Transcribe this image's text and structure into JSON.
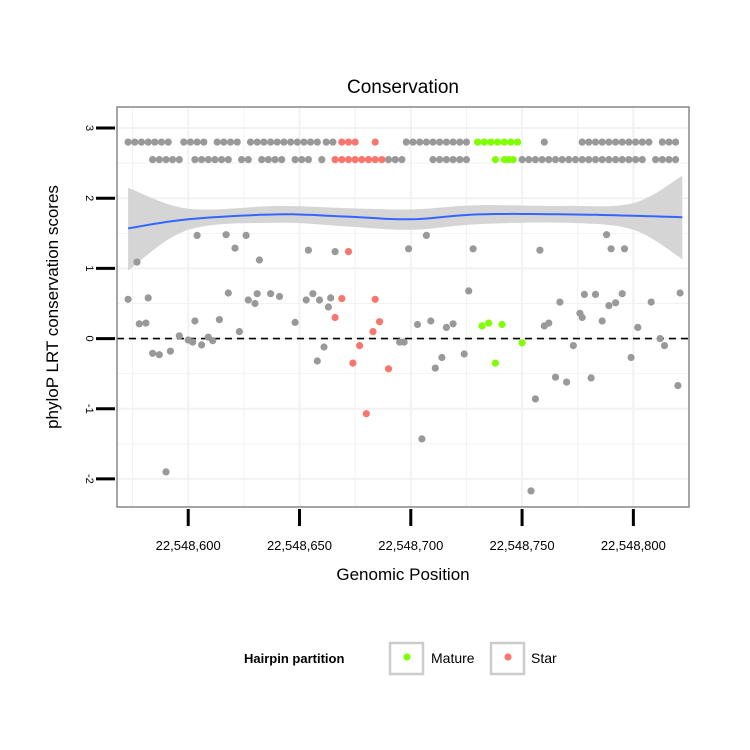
{
  "chart_data": {
    "type": "scatter",
    "title": "Conservation",
    "xlabel": "Genomic Position",
    "ylabel": "phyloP LRT conservation scores",
    "xlim": [
      22548568,
      22548825
    ],
    "ylim": [
      -2.4,
      3.3
    ],
    "xticks": [
      22548600,
      22548650,
      22548700,
      22548750,
      22548800
    ],
    "xtick_labels": [
      "22,548,600",
      "22,548,650",
      "22,548,700",
      "22,548,750",
      "22,548,800"
    ],
    "yticks": [
      -2,
      -1,
      0,
      1,
      2,
      3
    ],
    "ytick_labels": [
      "-2",
      "-1",
      "0",
      "1",
      "2",
      "3"
    ],
    "grid": true,
    "reference_line": {
      "y": 0,
      "style": "dashed",
      "color": "#000000"
    },
    "colors": {
      "default": "#999999",
      "Mature": "#7FFF00",
      "Star": "#F8766D",
      "smooth_line": "#3366FF",
      "ribbon": "#D3D3D3",
      "panel_border": "#888888"
    },
    "legend": {
      "title": "Hairpin partition",
      "position": "bottom",
      "entries": [
        {
          "label": "Mature",
          "color": "#7FFF00"
        },
        {
          "label": "Star",
          "color": "#F8766D"
        }
      ]
    },
    "smooth": {
      "x": [
        22548573,
        22548600,
        22548640,
        22548670,
        22548700,
        22548730,
        22548770,
        22548800,
        22548822
      ],
      "y": [
        1.57,
        1.7,
        1.77,
        1.74,
        1.7,
        1.77,
        1.77,
        1.75,
        1.73
      ],
      "lower": [
        0.97,
        1.55,
        1.65,
        1.6,
        1.55,
        1.63,
        1.65,
        1.55,
        1.13
      ],
      "upper": [
        2.15,
        1.85,
        1.89,
        1.86,
        1.84,
        1.9,
        1.89,
        1.93,
        2.32
      ]
    },
    "series": [
      {
        "name": "",
        "partition": "none",
        "color": "#999999",
        "points": [
          [
            22548573,
            2.8
          ],
          [
            22548576,
            2.8
          ],
          [
            22548579,
            2.8
          ],
          [
            22548582,
            2.8
          ],
          [
            22548585,
            2.8
          ],
          [
            22548588,
            2.8
          ],
          [
            22548591,
            2.8
          ],
          [
            22548598,
            2.8
          ],
          [
            22548601,
            2.8
          ],
          [
            22548604,
            2.8
          ],
          [
            22548607,
            2.8
          ],
          [
            22548613,
            2.8
          ],
          [
            22548616,
            2.8
          ],
          [
            22548619,
            2.8
          ],
          [
            22548622,
            2.8
          ],
          [
            22548628,
            2.8
          ],
          [
            22548631,
            2.8
          ],
          [
            22548634,
            2.8
          ],
          [
            22548637,
            2.8
          ],
          [
            22548640,
            2.8
          ],
          [
            22548643,
            2.8
          ],
          [
            22548646,
            2.8
          ],
          [
            22548649,
            2.8
          ],
          [
            22548652,
            2.8
          ],
          [
            22548655,
            2.8
          ],
          [
            22548658,
            2.8
          ],
          [
            22548662,
            2.8
          ],
          [
            22548665,
            2.8
          ],
          [
            22548698,
            2.8
          ],
          [
            22548701,
            2.8
          ],
          [
            22548704,
            2.8
          ],
          [
            22548707,
            2.8
          ],
          [
            22548710,
            2.8
          ],
          [
            22548713,
            2.8
          ],
          [
            22548716,
            2.8
          ],
          [
            22548719,
            2.8
          ],
          [
            22548722,
            2.8
          ],
          [
            22548725,
            2.8
          ],
          [
            22548760,
            2.8
          ],
          [
            22548777,
            2.8
          ],
          [
            22548780,
            2.8
          ],
          [
            22548783,
            2.8
          ],
          [
            22548786,
            2.8
          ],
          [
            22548789,
            2.8
          ],
          [
            22548792,
            2.8
          ],
          [
            22548795,
            2.8
          ],
          [
            22548798,
            2.8
          ],
          [
            22548801,
            2.8
          ],
          [
            22548804,
            2.8
          ],
          [
            22548807,
            2.8
          ],
          [
            22548813,
            2.8
          ],
          [
            22548816,
            2.8
          ],
          [
            22548819,
            2.8
          ],
          [
            22548584,
            2.55
          ],
          [
            22548587,
            2.55
          ],
          [
            22548590,
            2.55
          ],
          [
            22548593,
            2.55
          ],
          [
            22548596,
            2.55
          ],
          [
            22548603,
            2.55
          ],
          [
            22548606,
            2.55
          ],
          [
            22548609,
            2.55
          ],
          [
            22548612,
            2.55
          ],
          [
            22548615,
            2.55
          ],
          [
            22548618,
            2.55
          ],
          [
            22548624,
            2.55
          ],
          [
            22548627,
            2.55
          ],
          [
            22548633,
            2.55
          ],
          [
            22548636,
            2.55
          ],
          [
            22548639,
            2.55
          ],
          [
            22548642,
            2.55
          ],
          [
            22548648,
            2.55
          ],
          [
            22548651,
            2.55
          ],
          [
            22548654,
            2.55
          ],
          [
            22548660,
            2.55
          ],
          [
            22548690,
            2.55
          ],
          [
            22548693,
            2.55
          ],
          [
            22548696,
            2.55
          ],
          [
            22548710,
            2.55
          ],
          [
            22548713,
            2.55
          ],
          [
            22548716,
            2.55
          ],
          [
            22548719,
            2.55
          ],
          [
            22548722,
            2.55
          ],
          [
            22548725,
            2.55
          ],
          [
            22548750,
            2.55
          ],
          [
            22548753,
            2.55
          ],
          [
            22548756,
            2.55
          ],
          [
            22548759,
            2.55
          ],
          [
            22548762,
            2.55
          ],
          [
            22548765,
            2.55
          ],
          [
            22548768,
            2.55
          ],
          [
            22548771,
            2.55
          ],
          [
            22548774,
            2.55
          ],
          [
            22548777,
            2.55
          ],
          [
            22548780,
            2.55
          ],
          [
            22548783,
            2.55
          ],
          [
            22548786,
            2.55
          ],
          [
            22548789,
            2.55
          ],
          [
            22548792,
            2.55
          ],
          [
            22548795,
            2.55
          ],
          [
            22548798,
            2.55
          ],
          [
            22548801,
            2.55
          ],
          [
            22548804,
            2.55
          ],
          [
            22548810,
            2.55
          ],
          [
            22548813,
            2.55
          ],
          [
            22548816,
            2.55
          ],
          [
            22548819,
            2.55
          ],
          [
            22548573,
            0.56
          ],
          [
            22548577,
            1.09
          ],
          [
            22548578,
            0.21
          ],
          [
            22548581,
            0.22
          ],
          [
            22548582,
            0.58
          ],
          [
            22548584,
            -0.21
          ],
          [
            22548587,
            -0.23
          ],
          [
            22548590,
            -1.9
          ],
          [
            22548592,
            -0.18
          ],
          [
            22548596,
            0.04
          ],
          [
            22548600,
            -0.02
          ],
          [
            22548602,
            -0.05
          ],
          [
            22548603,
            0.25
          ],
          [
            22548604,
            1.47
          ],
          [
            22548606,
            -0.09
          ],
          [
            22548609,
            0.02
          ],
          [
            22548611,
            -0.03
          ],
          [
            22548614,
            0.27
          ],
          [
            22548617,
            1.48
          ],
          [
            22548618,
            0.65
          ],
          [
            22548621,
            1.29
          ],
          [
            22548623,
            0.1
          ],
          [
            22548626,
            1.47
          ],
          [
            22548627,
            0.55
          ],
          [
            22548630,
            0.5
          ],
          [
            22548631,
            0.64
          ],
          [
            22548632,
            1.12
          ],
          [
            22548637,
            0.64
          ],
          [
            22548641,
            0.6
          ],
          [
            22548648,
            0.23
          ],
          [
            22548653,
            0.55
          ],
          [
            22548654,
            1.26
          ],
          [
            22548656,
            0.64
          ],
          [
            22548658,
            -0.32
          ],
          [
            22548659,
            0.55
          ],
          [
            22548661,
            -0.12
          ],
          [
            22548663,
            0.45
          ],
          [
            22548664,
            0.58
          ],
          [
            22548666,
            1.24
          ],
          [
            22548695,
            -0.05
          ],
          [
            22548697,
            -0.05
          ],
          [
            22548699,
            1.28
          ],
          [
            22548703,
            0.2
          ],
          [
            22548705,
            -1.43
          ],
          [
            22548707,
            1.47
          ],
          [
            22548709,
            0.25
          ],
          [
            22548711,
            -0.42
          ],
          [
            22548714,
            -0.27
          ],
          [
            22548716,
            0.16
          ],
          [
            22548719,
            0.21
          ],
          [
            22548724,
            -0.22
          ],
          [
            22548726,
            0.68
          ],
          [
            22548728,
            1.28
          ],
          [
            22548756,
            -0.86
          ],
          [
            22548754,
            -2.17
          ],
          [
            22548758,
            1.26
          ],
          [
            22548760,
            0.18
          ],
          [
            22548762,
            0.22
          ],
          [
            22548765,
            -0.55
          ],
          [
            22548767,
            0.52
          ],
          [
            22548770,
            -0.62
          ],
          [
            22548773,
            -0.1
          ],
          [
            22548776,
            0.36
          ],
          [
            22548777,
            0.3
          ],
          [
            22548778,
            0.63
          ],
          [
            22548781,
            -0.56
          ],
          [
            22548783,
            0.63
          ],
          [
            22548786,
            0.25
          ],
          [
            22548788,
            1.48
          ],
          [
            22548789,
            0.47
          ],
          [
            22548790,
            1.28
          ],
          [
            22548792,
            0.51
          ],
          [
            22548795,
            0.64
          ],
          [
            22548796,
            1.28
          ],
          [
            22548799,
            -0.27
          ],
          [
            22548802,
            0.16
          ],
          [
            22548808,
            0.52
          ],
          [
            22548812,
            0.0
          ],
          [
            22548814,
            -0.1
          ],
          [
            22548820,
            -0.67
          ],
          [
            22548821,
            0.65
          ]
        ]
      },
      {
        "name": "Mature",
        "partition": "Mature",
        "color": "#7FFF00",
        "points": [
          [
            22548730,
            2.8
          ],
          [
            22548733,
            2.8
          ],
          [
            22548736,
            2.8
          ],
          [
            22548739,
            2.8
          ],
          [
            22548742,
            2.8
          ],
          [
            22548745,
            2.8
          ],
          [
            22548748,
            2.8
          ],
          [
            22548738,
            2.55
          ],
          [
            22548742,
            2.55
          ],
          [
            22548744,
            2.55
          ],
          [
            22548746,
            2.55
          ],
          [
            22548732,
            0.18
          ],
          [
            22548735,
            0.22
          ],
          [
            22548738,
            -0.35
          ],
          [
            22548741,
            0.2
          ],
          [
            22548750,
            -0.06
          ]
        ]
      },
      {
        "name": "Star",
        "partition": "Star",
        "color": "#F8766D",
        "points": [
          [
            22548669,
            2.8
          ],
          [
            22548672,
            2.8
          ],
          [
            22548675,
            2.8
          ],
          [
            22548684,
            2.8
          ],
          [
            22548666,
            2.55
          ],
          [
            22548669,
            2.55
          ],
          [
            22548672,
            2.55
          ],
          [
            22548675,
            2.55
          ],
          [
            22548678,
            2.55
          ],
          [
            22548681,
            2.55
          ],
          [
            22548684,
            2.55
          ],
          [
            22548687,
            2.55
          ],
          [
            22548666,
            0.3
          ],
          [
            22548669,
            0.57
          ],
          [
            22548672,
            1.24
          ],
          [
            22548674,
            -0.35
          ],
          [
            22548677,
            -0.1
          ],
          [
            22548680,
            -1.07
          ],
          [
            22548683,
            0.1
          ],
          [
            22548684,
            0.56
          ],
          [
            22548686,
            0.24
          ],
          [
            22548690,
            -0.43
          ]
        ]
      }
    ]
  }
}
